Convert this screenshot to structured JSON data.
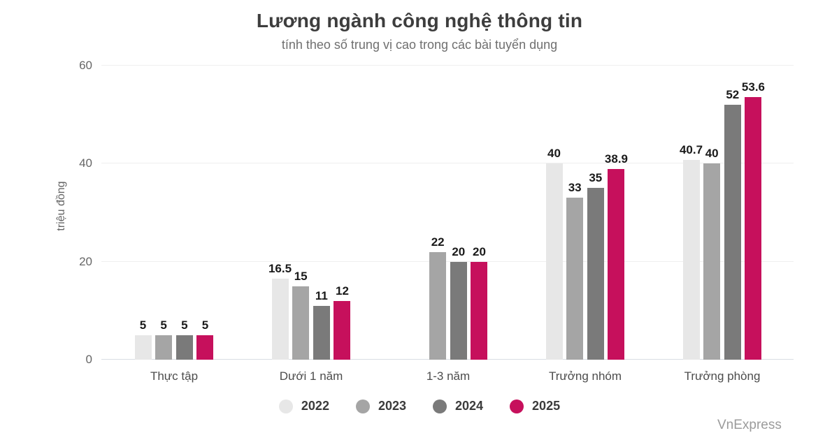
{
  "title": "Lương ngành công nghệ thông tin",
  "subtitle": "tính theo số trung vị cao trong các bài tuyển dụng",
  "watermark": "VnExpress",
  "chart_data": {
    "type": "bar",
    "title": "Lương ngành công nghệ thông tin",
    "subtitle": "tính theo số trung vị cao trong các bài tuyển dụng",
    "xlabel": "",
    "ylabel": "triệu đồng",
    "ylim": [
      0,
      60
    ],
    "yticks": [
      0,
      20,
      40,
      60
    ],
    "grid": true,
    "legend_position": "bottom",
    "categories": [
      "Thực tập",
      "Dưới 1 năm",
      "1-3 năm",
      "Trưởng nhóm",
      "Trưởng phòng"
    ],
    "series": [
      {
        "name": "2022",
        "color": "#e7e7e7",
        "values": [
          5,
          16.5,
          null,
          40,
          40.7
        ]
      },
      {
        "name": "2023",
        "color": "#a5a5a5",
        "values": [
          5,
          15,
          22,
          33,
          40
        ]
      },
      {
        "name": "2024",
        "color": "#7a7a7a",
        "values": [
          5,
          11,
          20,
          35,
          52
        ]
      },
      {
        "name": "2025",
        "color": "#c6105c",
        "values": [
          5,
          12,
          20,
          38.9,
          53.6
        ]
      }
    ]
  }
}
